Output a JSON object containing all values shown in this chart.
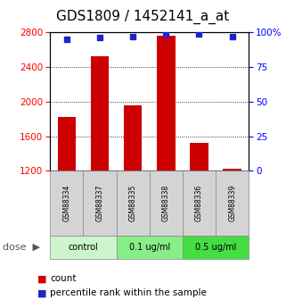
{
  "title": "GDS1809 / 1452141_a_at",
  "samples": [
    "GSM88334",
    "GSM88337",
    "GSM88335",
    "GSM88338",
    "GSM88336",
    "GSM88339"
  ],
  "bar_values": [
    1820,
    2520,
    1960,
    2760,
    1520,
    1230
  ],
  "percentile_values": [
    95,
    96,
    97,
    99,
    99,
    97
  ],
  "ylim_left": [
    1200,
    2800
  ],
  "ylim_right": [
    0,
    100
  ],
  "yticks_left": [
    1200,
    1600,
    2000,
    2400,
    2800
  ],
  "yticks_right": [
    0,
    25,
    50,
    75,
    100
  ],
  "bar_color": "#cc0000",
  "dot_color": "#2222cc",
  "dose_groups": [
    {
      "label": "control",
      "indices": [
        0,
        1
      ],
      "color": "#ccf5cc"
    },
    {
      "label": "0.1 ug/ml",
      "indices": [
        2,
        3
      ],
      "color": "#88ee88"
    },
    {
      "label": "0.5 ug/ml",
      "indices": [
        4,
        5
      ],
      "color": "#44dd44"
    }
  ],
  "dose_label": "dose",
  "legend_count_label": "count",
  "legend_pct_label": "percentile rank within the sample",
  "background_color": "#ffffff",
  "sample_cell_color": "#d4d4d4",
  "title_fontsize": 11
}
